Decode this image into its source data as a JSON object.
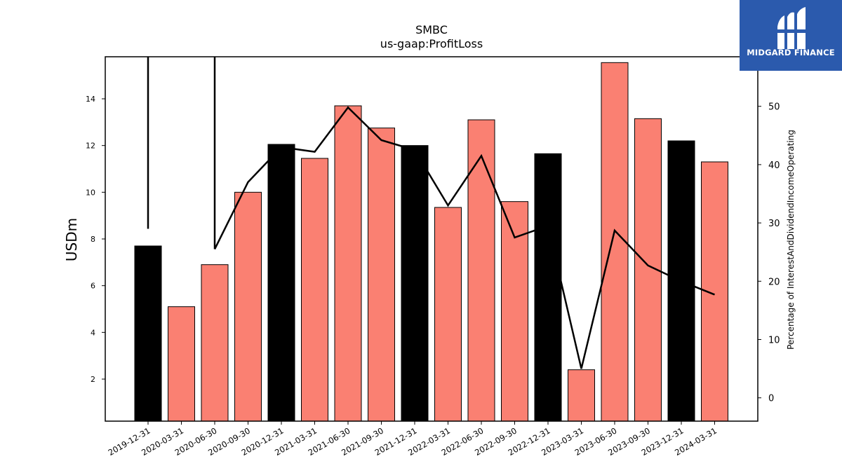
{
  "brand": {
    "logo_text": "MIDGARD FINANCE",
    "logo_color": "#2b5aad"
  },
  "chart_data": {
    "type": "bar",
    "title": "SMBC",
    "subtitle": "us-gaap:ProfitLoss",
    "ylabel": "USDm",
    "y2label": "Percentage of InterestAndDividendIncomeOperating",
    "categories": [
      "2019-12-31",
      "2020-03-31",
      "2020-06-30",
      "2020-09-30",
      "2020-12-31",
      "2021-03-31",
      "2021-06-30",
      "2021-09-30",
      "2021-12-31",
      "2022-03-31",
      "2022-06-30",
      "2022-09-30",
      "2022-12-31",
      "2023-03-31",
      "2023-06-30",
      "2023-09-30",
      "2023-12-31",
      "2024-03-31"
    ],
    "series": [
      {
        "values": [
          7.7,
          5.1,
          6.9,
          10.0,
          12.05,
          11.45,
          13.7,
          12.75,
          12.0,
          9.35,
          13.1,
          9.6,
          11.65,
          2.4,
          15.55,
          13.15,
          12.2,
          11.3
        ],
        "axis": "left"
      },
      {
        "values": [
          29,
          null,
          25.5,
          37,
          43,
          42.2,
          49.8,
          44.2,
          42.5,
          33,
          41.5,
          27.5,
          29.5,
          5,
          28.7,
          22.7,
          20,
          17.7
        ],
        "axis": "right"
      }
    ],
    "bar_colors": [
      "#000000",
      "#fa8072",
      "#fa8072",
      "#fa8072",
      "#000000",
      "#fa8072",
      "#fa8072",
      "#fa8072",
      "#000000",
      "#fa8072",
      "#fa8072",
      "#fa8072",
      "#000000",
      "#fa8072",
      "#fa8072",
      "#fa8072",
      "#000000",
      "#fa8072"
    ],
    "line_color": "#000000",
    "ylim": [
      0.2,
      15.8
    ],
    "y2lim": [
      -4,
      58.5
    ],
    "yticks": [
      2,
      4,
      6,
      8,
      10,
      12,
      14
    ],
    "y2ticks": [
      0,
      10,
      20,
      30,
      40,
      50
    ],
    "grid": false,
    "legend": "none"
  }
}
